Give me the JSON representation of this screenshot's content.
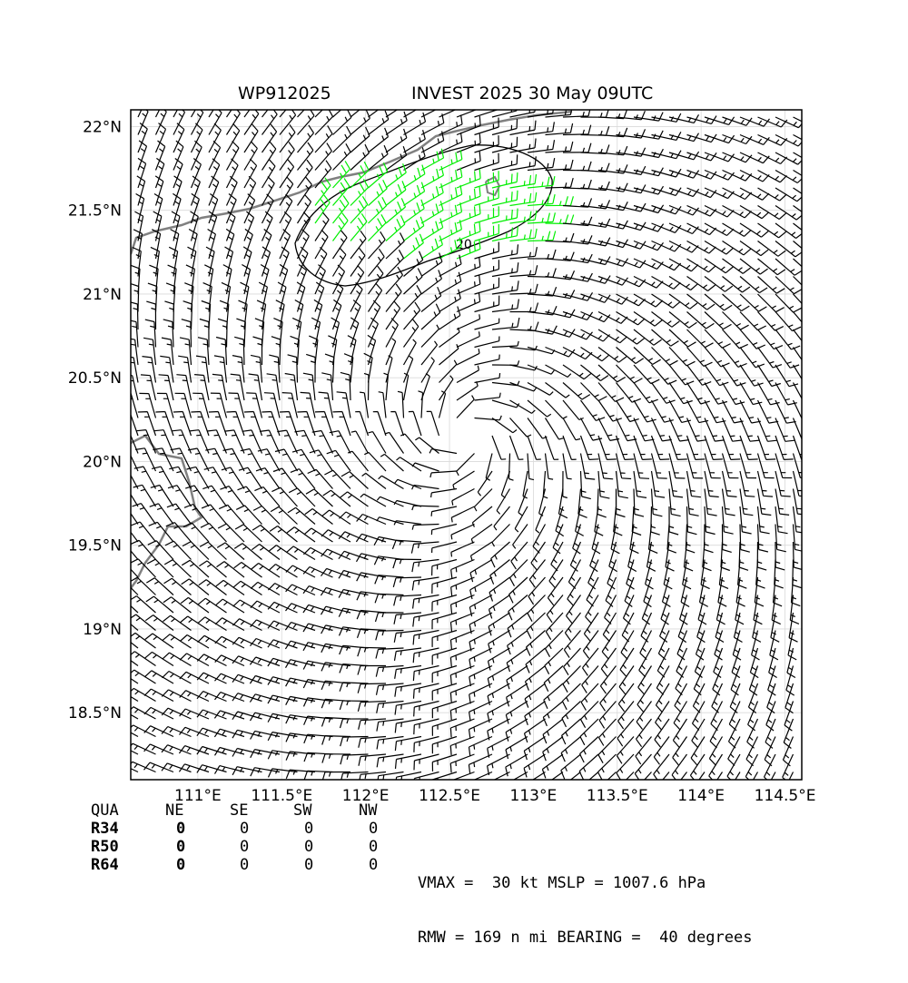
{
  "title": {
    "storm_id": "WP912025",
    "description": "INVEST 2025 30 May 09UTC"
  },
  "map": {
    "lon_range": [
      110.6,
      114.6
    ],
    "lat_range": [
      18.1,
      22.1
    ],
    "lon_ticks": [
      111.0,
      111.5,
      112.0,
      112.5,
      113.0,
      113.5,
      114.0,
      114.5
    ],
    "lon_tick_labels": [
      "111°E",
      "111.5°E",
      "112°E",
      "112.5°E",
      "113°E",
      "113.5°E",
      "114°E",
      "114.5°E"
    ],
    "lat_ticks": [
      18.5,
      19.0,
      19.5,
      20.0,
      20.5,
      21.0,
      21.5,
      22.0
    ],
    "lat_tick_labels": [
      "18.5°N",
      "19°N",
      "19.5°N",
      "20°N",
      "20.5°N",
      "21°N",
      "21.5°N",
      "22°N"
    ],
    "grid": true,
    "center": {
      "lon": 112.6,
      "lat": 20.15
    },
    "contour_label": "20",
    "colors": {
      "barb": "#000000",
      "barb_strong": "#00ee00",
      "coastline": "#808080",
      "grid": "#d9d9d9"
    }
  },
  "radii": {
    "headers": [
      "QUA",
      "NE",
      "SE",
      "SW",
      "NW"
    ],
    "rows": [
      {
        "label": "R34",
        "values": [
          "0",
          "0",
          "0",
          "0"
        ]
      },
      {
        "label": "R50",
        "values": [
          "0",
          "0",
          "0",
          "0"
        ]
      },
      {
        "label": "R64",
        "values": [
          "0",
          "0",
          "0",
          "0"
        ]
      }
    ]
  },
  "info": {
    "line1": "VMAX =  30 kt MSLP = 1007.6 hPa",
    "line2": "RMW = 169 n mi BEARING =  40 degrees"
  }
}
